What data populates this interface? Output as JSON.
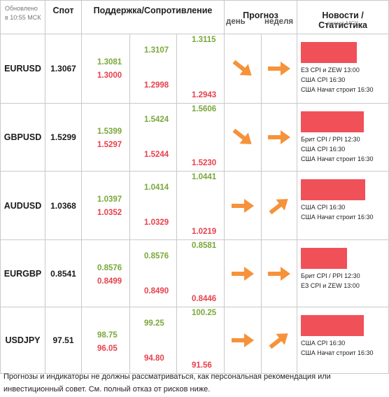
{
  "header": {
    "updated_line1": "Обновлено",
    "updated_line2": "в 10:55 МСК",
    "spot": "Спот",
    "support_resistance": "Поддержка/Сопротивление",
    "forecast": "Прогноз",
    "forecast_day": "день",
    "forecast_week": "неделя",
    "news": "Новости / Статистика",
    "news_time": "время МСК"
  },
  "rows": [
    {
      "pair": "EURUSD",
      "spot": "1.3067",
      "levels": {
        "c1_green": "1.3081",
        "c1_red": "1.3000",
        "c2_green": "1.3107",
        "c2_red": "1.2998",
        "c3_green": "1.3115",
        "c3_red": "1.2943"
      },
      "forecast_day": "down-right",
      "forecast_week": "right",
      "news_bar_pct": 82,
      "news": [
        "ЕЗ CPI и ZEW 13:00",
        "США CPI 16:30",
        "США Начат строит 16:30"
      ]
    },
    {
      "pair": "GBPUSD",
      "spot": "1.5299",
      "levels": {
        "c1_green": "1.5399",
        "c1_red": "1.5297",
        "c2_green": "1.5424",
        "c2_red": "1.5244",
        "c3_green": "1.5606",
        "c3_red": "1.5230"
      },
      "forecast_day": "down-right",
      "forecast_week": "right",
      "news_bar_pct": 92,
      "news": [
        "Брит CPI / PPI 12:30",
        "США CPI 16:30",
        "США Начат строит 16:30"
      ]
    },
    {
      "pair": "AUDUSD",
      "spot": "1.0368",
      "levels": {
        "c1_green": "1.0397",
        "c1_red": "1.0352",
        "c2_green": "1.0414",
        "c2_red": "1.0329",
        "c3_green": "1.0441",
        "c3_red": "1.0219"
      },
      "forecast_day": "right",
      "forecast_week": "up-right",
      "news_bar_pct": 94,
      "news": [
        "США CPI 16:30",
        "США Начат строит 16:30"
      ]
    },
    {
      "pair": "EURGBP",
      "spot": "0.8541",
      "levels": {
        "c1_green": "0.8576",
        "c1_red": "0.8499",
        "c2_green": "0.8576",
        "c2_red": "0.8490",
        "c3_green": "0.8581",
        "c3_red": "0.8446"
      },
      "forecast_day": "right",
      "forecast_week": "right",
      "news_bar_pct": 67,
      "news": [
        "Брит CPI / PPI 12:30",
        "ЕЗ CPI и ZEW 13:00"
      ]
    },
    {
      "pair": "USDJPY",
      "spot": "97.51",
      "levels": {
        "c1_green": "98.75",
        "c1_red": "96.05",
        "c2_green": "99.25",
        "c2_red": "94.80",
        "c3_green": "100.25",
        "c3_red": "91.56"
      },
      "forecast_day": "right",
      "forecast_week": "up-right",
      "news_bar_pct": 92,
      "news": [
        "США CPI 16:30",
        "США Начат строит 16:30"
      ]
    }
  ],
  "disclaimer": "Прогнозы и индикаторы не должны рассматриваться, как персональная рекомендация или инвестиционный совет. См. полный отказ от рисков ниже.",
  "colors": {
    "green": "#79a83a",
    "red": "#e8404c",
    "arrow": "#f6923a",
    "news_bar": "#f05058"
  }
}
